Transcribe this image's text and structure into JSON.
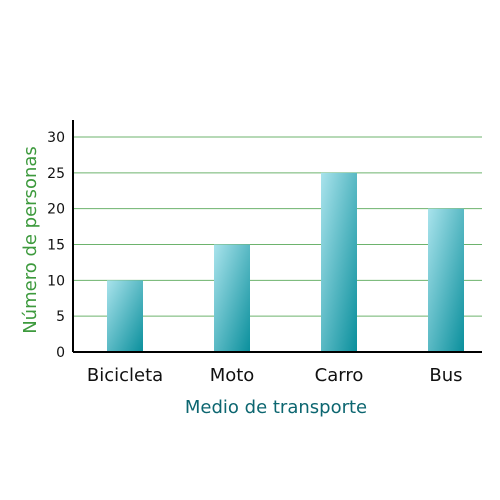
{
  "chart_data": {
    "type": "bar",
    "categories": [
      "Bicicleta",
      "Moto",
      "Carro",
      "Bus"
    ],
    "values": [
      10,
      15,
      25,
      20
    ],
    "xlabel": "Medio de transporte",
    "ylabel": "Número de personas",
    "ylim": [
      0,
      30
    ],
    "yticks": [
      0,
      5,
      10,
      15,
      20,
      25,
      30
    ],
    "grid": true,
    "colors": {
      "bar_light": "#a9e3ec",
      "bar_dark": "#0a8f9c",
      "grid": "#6db36d",
      "axis": "#000000",
      "xlabel": "#0c6670",
      "ylabel": "#3d9a3d"
    }
  }
}
